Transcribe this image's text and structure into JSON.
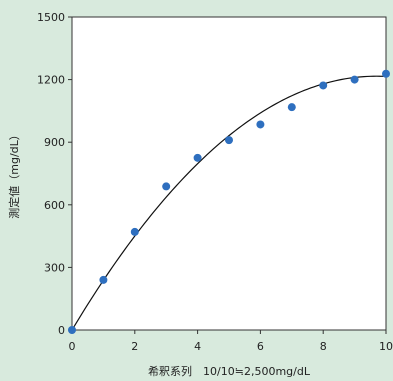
{
  "chart_data": {
    "type": "scatter",
    "title": "",
    "xlabel": "希釈系列　10/10≒2,500mg/dL",
    "ylabel": "測定値（mg/dL）",
    "xlim": [
      0,
      10
    ],
    "ylim": [
      0,
      1500
    ],
    "x_ticks": [
      "0",
      "2",
      "4",
      "6",
      "8",
      "10"
    ],
    "y_ticks": [
      "0",
      "300",
      "600",
      "900",
      "1200",
      "1500"
    ],
    "grid": false,
    "legend": "none",
    "point_color": "#2e6fbf",
    "series": [
      {
        "x": [
          0,
          1,
          2,
          3,
          4,
          5,
          6,
          7,
          8,
          9,
          10
        ],
        "y": [
          0,
          240,
          470,
          688,
          825,
          910,
          985,
          1068,
          1172,
          1200,
          1228
        ]
      }
    ],
    "trendline": {
      "type": "polynomial-2",
      "coefficients": [
        0,
        251.1,
        -12.96
      ]
    }
  }
}
